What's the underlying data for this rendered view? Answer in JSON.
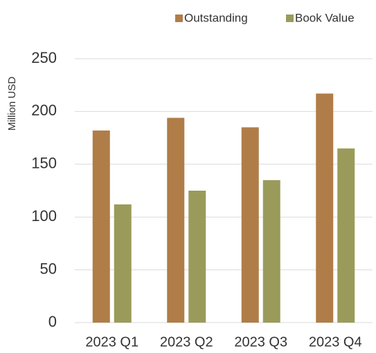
{
  "chart_data": {
    "type": "bar",
    "y_axis_label": "Million USD",
    "categories": [
      "2023 Q1",
      "2023 Q2",
      "2023 Q3",
      "2023 Q4"
    ],
    "series": [
      {
        "name": "Outstanding",
        "color": "#b07d48",
        "values": [
          182,
          194,
          185,
          217
        ]
      },
      {
        "name": "Book Value",
        "color": "#9a9b5a",
        "values": [
          112,
          125,
          135,
          165
        ]
      }
    ],
    "ylim": [
      0,
      250
    ],
    "yticks": [
      0,
      50,
      100,
      150,
      200,
      250
    ],
    "grid": true,
    "legend": "top"
  }
}
